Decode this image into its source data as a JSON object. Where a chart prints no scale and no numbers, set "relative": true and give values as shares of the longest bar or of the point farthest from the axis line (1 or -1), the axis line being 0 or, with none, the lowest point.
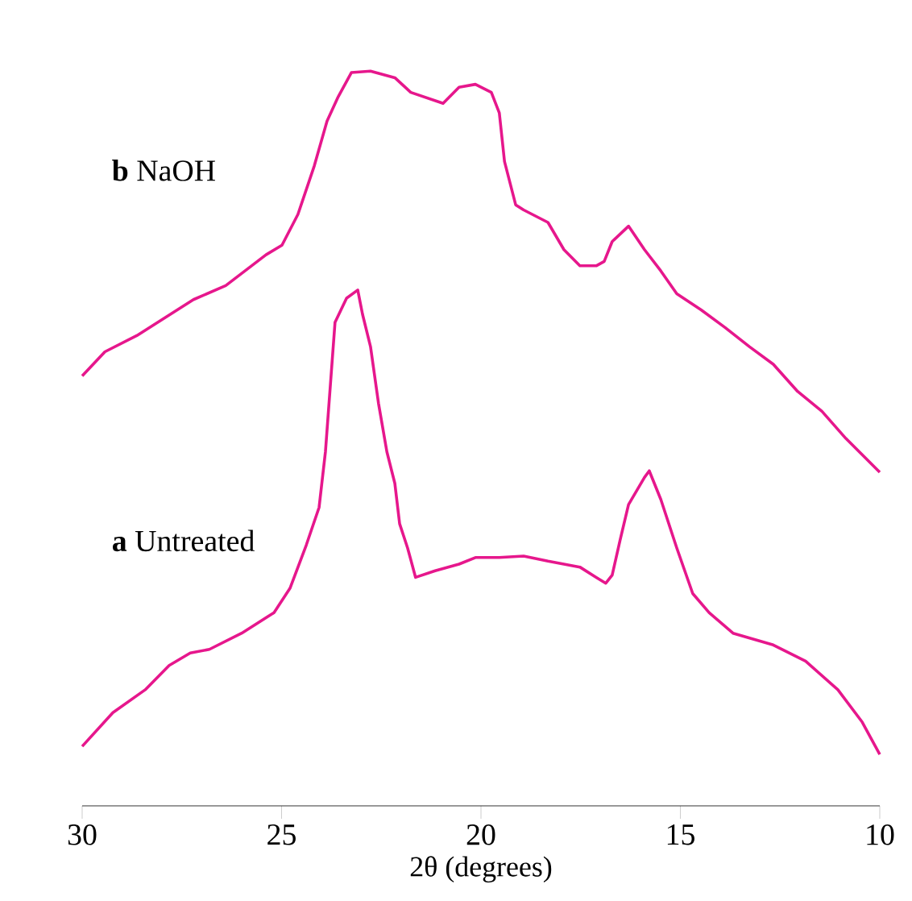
{
  "chart_data": {
    "type": "line",
    "relative": true,
    "xlabel": "2θ (degrees)",
    "xlim": [
      30,
      10
    ],
    "xticks": [
      30,
      25,
      20,
      15,
      10
    ],
    "line_style": "solid",
    "grid": false,
    "series": [
      {
        "name": "**b** NaOH",
        "color": "#e6178c",
        "x": [
          30,
          29.43,
          28.63,
          27.21,
          26.4,
          25.39,
          24.99,
          24.59,
          24.18,
          23.86,
          23.58,
          23.25,
          22.77,
          22.16,
          21.76,
          20.95,
          20.55,
          20.14,
          19.74,
          19.54,
          19.41,
          19.13,
          18.93,
          18.32,
          17.92,
          17.52,
          17.11,
          16.91,
          16.71,
          16.3,
          15.9,
          15.49,
          15.09,
          14.48,
          13.88,
          13.27,
          12.67,
          12.06,
          11.45,
          10.85,
          10
        ],
        "values": [
          0.585,
          0.618,
          0.64,
          0.689,
          0.708,
          0.75,
          0.763,
          0.805,
          0.871,
          0.932,
          0.965,
          0.998,
          1.0,
          0.991,
          0.971,
          0.956,
          0.978,
          0.982,
          0.971,
          0.943,
          0.877,
          0.818,
          0.811,
          0.794,
          0.757,
          0.735,
          0.735,
          0.741,
          0.768,
          0.789,
          0.757,
          0.728,
          0.697,
          0.675,
          0.651,
          0.625,
          0.601,
          0.564,
          0.537,
          0.5,
          0.454
        ]
      },
      {
        "name": "**a** Untreated",
        "color": "#e6178c",
        "x": [
          30,
          29.23,
          28.42,
          27.82,
          27.29,
          26.81,
          26.0,
          25.19,
          24.79,
          24.38,
          24.06,
          23.9,
          23.78,
          23.66,
          23.37,
          23.09,
          22.97,
          22.77,
          22.57,
          22.36,
          22.16,
          22.04,
          21.84,
          21.64,
          21.15,
          20.55,
          20.14,
          19.54,
          18.93,
          18.32,
          17.52,
          17.11,
          16.87,
          16.71,
          16.51,
          16.3,
          15.9,
          15.78,
          15.49,
          15.09,
          14.69,
          14.28,
          13.68,
          12.67,
          11.86,
          11.05,
          10.44,
          10
        ],
        "values": [
          0.081,
          0.127,
          0.158,
          0.191,
          0.208,
          0.213,
          0.235,
          0.263,
          0.296,
          0.355,
          0.406,
          0.482,
          0.57,
          0.658,
          0.691,
          0.702,
          0.669,
          0.625,
          0.548,
          0.482,
          0.439,
          0.384,
          0.351,
          0.311,
          0.32,
          0.329,
          0.338,
          0.338,
          0.34,
          0.333,
          0.325,
          0.311,
          0.303,
          0.314,
          0.362,
          0.41,
          0.447,
          0.456,
          0.417,
          0.351,
          0.289,
          0.263,
          0.235,
          0.219,
          0.197,
          0.158,
          0.114,
          0.07
        ]
      }
    ]
  }
}
